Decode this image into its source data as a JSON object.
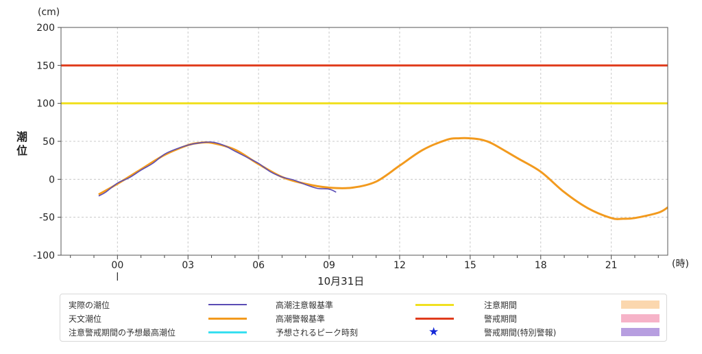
{
  "chart_data": {
    "type": "line",
    "y_unit": "(cm)",
    "x_unit": "(時)",
    "ylabel": [
      "潮",
      "位"
    ],
    "ylim": [
      -100,
      200
    ],
    "yticks": [
      -100,
      -50,
      0,
      50,
      100,
      150,
      200
    ],
    "xlim": [
      -2.4,
      23.4
    ],
    "xticks": [
      0,
      3,
      6,
      9,
      12,
      15,
      18,
      21
    ],
    "xtick_labels": [
      "00",
      "03",
      "06",
      "09",
      "12",
      "15",
      "18",
      "21"
    ],
    "date_label": "10月31日",
    "grid": true,
    "thresholds": [
      {
        "name": "高潮警報基準",
        "value": 150,
        "color": "#e03c1c"
      },
      {
        "name": "高潮注意報基準",
        "value": 100,
        "color": "#f0e020"
      }
    ],
    "series": [
      {
        "name": "天文潮位",
        "color": "#f29a1e",
        "x": [
          -0.8,
          0,
          1,
          2,
          3,
          3.5,
          4,
          5,
          6,
          7,
          8,
          9,
          10,
          11,
          12,
          13,
          14,
          14.5,
          15,
          15.5,
          16,
          17,
          18,
          19,
          20,
          21,
          21.5,
          22,
          23,
          23.4
        ],
        "y": [
          -20,
          -6,
          13,
          32,
          45,
          48,
          48,
          39,
          20,
          3,
          -6,
          -11,
          -11,
          -3,
          18,
          39,
          52,
          54,
          54,
          52,
          46,
          28,
          10,
          -17,
          -38,
          -51,
          -52,
          -51,
          -44,
          -37
        ]
      },
      {
        "name": "実際の潮位",
        "color": "#5a4cb4",
        "x": [
          -0.8,
          -0.5,
          0,
          0.5,
          1,
          1.5,
          2,
          2.5,
          3,
          3.5,
          4,
          4.5,
          5,
          5.5,
          6,
          6.5,
          7,
          7.5,
          8,
          8.5,
          9,
          9.3
        ],
        "y": [
          -22,
          -17,
          -5,
          2,
          12,
          21,
          33,
          40,
          45,
          48,
          49,
          45,
          37,
          29,
          21,
          10,
          3,
          -1,
          -7,
          -12,
          -13,
          -17
        ]
      }
    ]
  },
  "legend": {
    "col1": [
      {
        "label": "実際の潮位",
        "type": "line",
        "color": "#5a4cb4"
      },
      {
        "label": "天文潮位",
        "type": "line",
        "color": "#f29a1e"
      },
      {
        "label": "注意警戒期間の予想最高潮位",
        "type": "line",
        "color": "#38dff0"
      }
    ],
    "col2": [
      {
        "label": "高潮注意報基準",
        "type": "line",
        "color": "#f0e020"
      },
      {
        "label": "高潮警報基準",
        "type": "line",
        "color": "#e03c1c"
      },
      {
        "label": "予想されるピーク時刻",
        "type": "star",
        "color": "#1428d8"
      }
    ],
    "col3": [
      {
        "label": "注意期間",
        "type": "box",
        "color": "#fbd7ae"
      },
      {
        "label": "警戒期間",
        "type": "box",
        "color": "#f6b3c8"
      },
      {
        "label": "警戒期間(特別警報)",
        "type": "box",
        "color": "#b79ee0"
      }
    ]
  }
}
